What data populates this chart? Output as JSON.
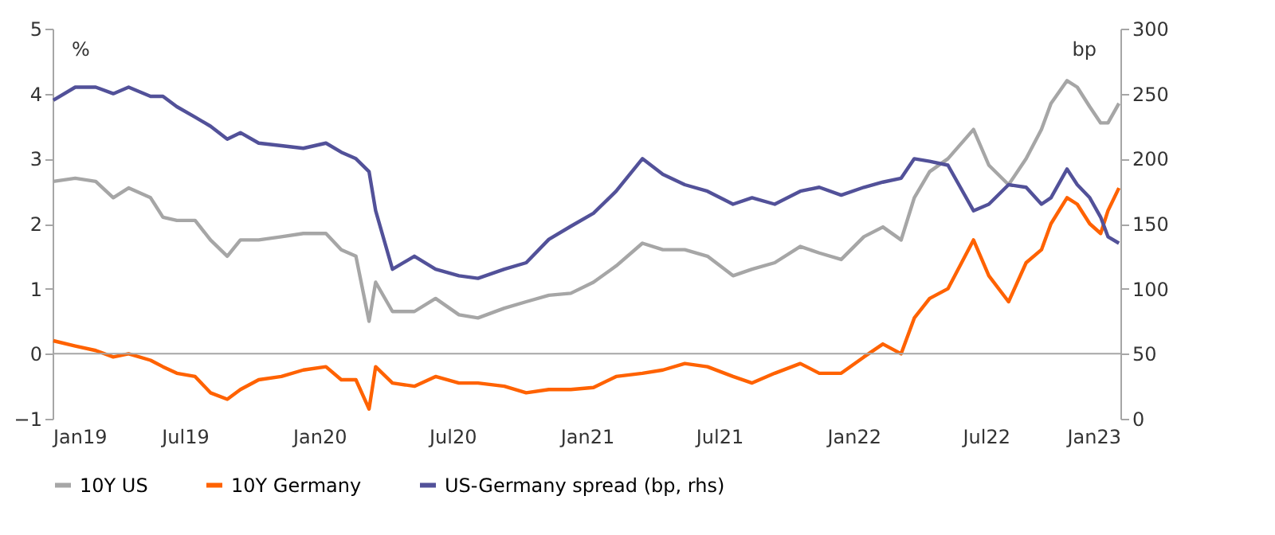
{
  "chart_data": {
    "type": "line",
    "ylabel": "%",
    "y2label": "bp",
    "legend": "bottom",
    "grid": false,
    "line_style": "solid",
    "marker": "none",
    "xlim": [
      "2019-01-01",
      "2023-01-01"
    ],
    "xticks": [
      {
        "value": "2019-01-01",
        "label": "Jan19"
      },
      {
        "value": "2019-07-01",
        "label": "Jul19"
      },
      {
        "value": "2020-01-01",
        "label": "Jan20"
      },
      {
        "value": "2020-07-01",
        "label": "Jul20"
      },
      {
        "value": "2021-01-01",
        "label": "Jan21"
      },
      {
        "value": "2021-07-01",
        "label": "Jul21"
      },
      {
        "value": "2022-01-01",
        "label": "Jan22"
      },
      {
        "value": "2022-07-01",
        "label": "Jul22"
      },
      {
        "value": "2023-01-01",
        "label": "Jan23"
      }
    ],
    "ylim": [
      -1,
      5
    ],
    "yticks": [
      -1,
      0,
      1,
      2,
      3,
      4,
      5
    ],
    "y2lim": [
      0,
      300
    ],
    "y2ticks": [
      0,
      50,
      100,
      150,
      200,
      250,
      300
    ],
    "ref_lines": [
      {
        "axis": "y",
        "value": 0,
        "label": null,
        "color": "#a6a6a6"
      }
    ],
    "x": [
      "2019-01-02",
      "2019-02-01",
      "2019-03-01",
      "2019-03-25",
      "2019-04-15",
      "2019-05-15",
      "2019-06-01",
      "2019-06-20",
      "2019-07-15",
      "2019-08-05",
      "2019-08-28",
      "2019-09-15",
      "2019-10-10",
      "2019-11-10",
      "2019-12-10",
      "2020-01-10",
      "2020-01-31",
      "2020-02-20",
      "2020-03-09",
      "2020-03-18",
      "2020-04-10",
      "2020-05-10",
      "2020-06-08",
      "2020-07-10",
      "2020-08-05",
      "2020-09-10",
      "2020-10-10",
      "2020-11-10",
      "2020-12-10",
      "2021-01-10",
      "2021-02-10",
      "2021-03-18",
      "2021-04-15",
      "2021-05-15",
      "2021-06-15",
      "2021-07-20",
      "2021-08-15",
      "2021-09-15",
      "2021-10-20",
      "2021-11-15",
      "2021-12-15",
      "2022-01-15",
      "2022-02-10",
      "2022-03-07",
      "2022-03-25",
      "2022-04-15",
      "2022-05-10",
      "2022-06-14",
      "2022-07-05",
      "2022-08-01",
      "2022-08-25",
      "2022-09-15",
      "2022-09-28",
      "2022-10-20",
      "2022-11-03",
      "2022-11-20",
      "2022-12-05",
      "2022-12-15",
      "2022-12-30"
    ],
    "series": [
      {
        "name": "10Y US",
        "color": "#a6a6a6",
        "values": [
          2.65,
          2.7,
          2.65,
          2.4,
          2.55,
          2.4,
          2.1,
          2.05,
          2.05,
          1.75,
          1.5,
          1.75,
          1.75,
          1.8,
          1.85,
          1.85,
          1.6,
          1.5,
          0.5,
          1.1,
          0.65,
          0.65,
          0.85,
          0.6,
          0.55,
          0.7,
          0.8,
          0.9,
          0.93,
          1.1,
          1.35,
          1.7,
          1.6,
          1.6,
          1.5,
          1.2,
          1.3,
          1.4,
          1.65,
          1.55,
          1.45,
          1.8,
          1.95,
          1.75,
          2.4,
          2.8,
          3.0,
          3.45,
          2.9,
          2.6,
          3.0,
          3.45,
          3.85,
          4.2,
          4.1,
          3.8,
          3.55,
          3.55,
          3.85
        ]
      },
      {
        "name": "10Y Germany",
        "color": "#ff6200",
        "values": [
          0.2,
          0.12,
          0.05,
          -0.05,
          0.0,
          -0.1,
          -0.2,
          -0.3,
          -0.35,
          -0.6,
          -0.7,
          -0.55,
          -0.4,
          -0.35,
          -0.25,
          -0.2,
          -0.4,
          -0.4,
          -0.85,
          -0.2,
          -0.45,
          -0.5,
          -0.35,
          -0.45,
          -0.45,
          -0.5,
          -0.6,
          -0.55,
          -0.55,
          -0.52,
          -0.35,
          -0.3,
          -0.25,
          -0.15,
          -0.2,
          -0.35,
          -0.45,
          -0.3,
          -0.15,
          -0.3,
          -0.3,
          -0.05,
          0.15,
          0.0,
          0.55,
          0.85,
          1.0,
          1.75,
          1.2,
          0.8,
          1.4,
          1.6,
          2.0,
          2.4,
          2.3,
          2.0,
          1.85,
          2.2,
          2.55
        ]
      },
      {
        "name": "US-Germany spread (bp, rhs)",
        "color": "#525199",
        "axis": "y2",
        "values": [
          245,
          255,
          255,
          250,
          255,
          248,
          248,
          240,
          232,
          225,
          215,
          220,
          212,
          210,
          208,
          212,
          205,
          200,
          190,
          160,
          115,
          125,
          115,
          110,
          108,
          115,
          120,
          138,
          148,
          158,
          175,
          200,
          188,
          180,
          175,
          165,
          170,
          165,
          175,
          178,
          172,
          178,
          182,
          185,
          200,
          198,
          195,
          160,
          165,
          180,
          178,
          165,
          170,
          192,
          180,
          170,
          155,
          140,
          135
        ]
      }
    ]
  }
}
